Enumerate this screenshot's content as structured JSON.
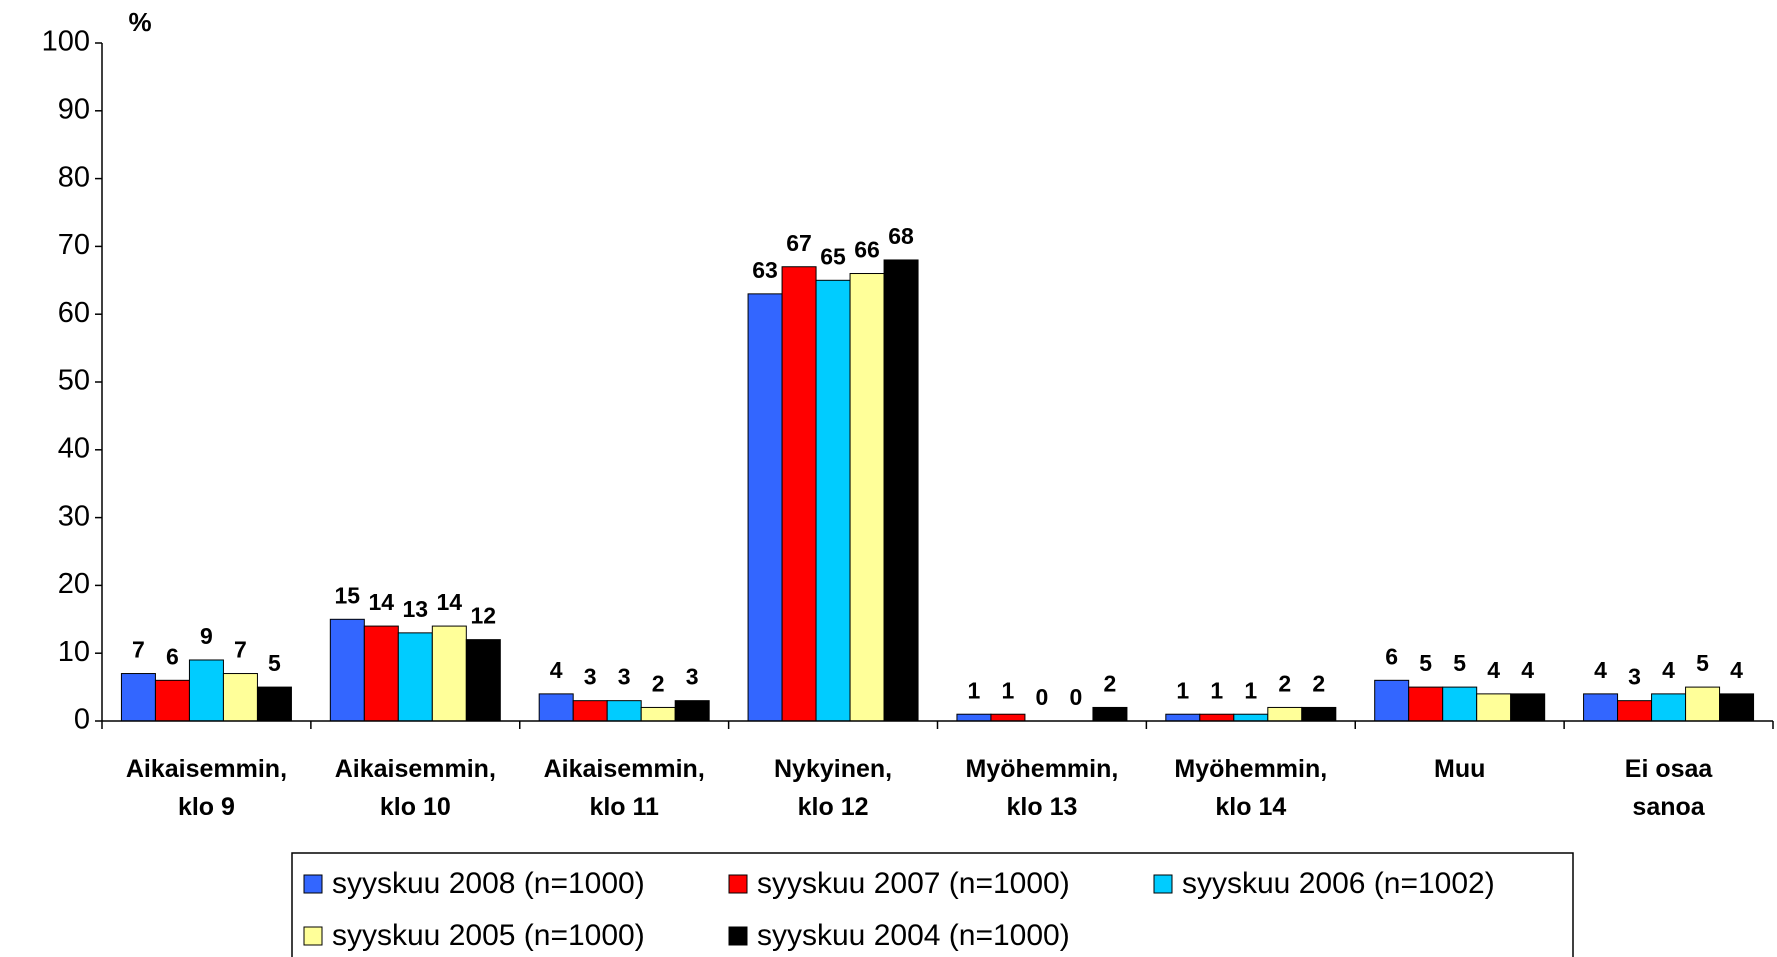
{
  "chart_data": {
    "type": "bar",
    "y_label": "%",
    "categories": [
      "Aikaisemmin,\nklo 9",
      "Aikaisemmin,\nklo 10",
      "Aikaisemmin,\nklo 11",
      "Nykyinen,\nklo 12",
      "Myöhemmin,\nklo 13",
      "Myöhemmin,\nklo 14",
      "Muu",
      "Ei osaa\nsanoa"
    ],
    "series": [
      {
        "name": "syyskuu 2008 (n=1000)",
        "color": "#3366ff",
        "values": [
          7,
          15,
          4,
          63,
          1,
          1,
          6,
          4
        ]
      },
      {
        "name": "syyskuu 2007 (n=1000)",
        "color": "#ff0000",
        "values": [
          6,
          14,
          3,
          67,
          1,
          1,
          5,
          3
        ]
      },
      {
        "name": "syyskuu 2006 (n=1002)",
        "color": "#00ccff",
        "values": [
          9,
          13,
          3,
          65,
          0,
          1,
          5,
          4
        ]
      },
      {
        "name": "syyskuu 2005 (n=1000)",
        "color": "#ffff99",
        "values": [
          7,
          14,
          2,
          66,
          0,
          2,
          4,
          5
        ]
      },
      {
        "name": "syyskuu 2004 (n=1000)",
        "color": "#000000",
        "values": [
          5,
          12,
          3,
          68,
          2,
          2,
          4,
          4
        ]
      }
    ],
    "ylim": [
      0,
      100
    ],
    "yticks": [
      0,
      10,
      20,
      30,
      40,
      50,
      60,
      70,
      80,
      90,
      100
    ],
    "grid": false,
    "legend": "bottom"
  }
}
